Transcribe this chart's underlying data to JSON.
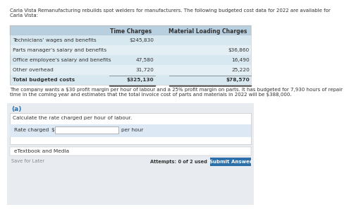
{
  "title_text": "Carla Vista Remanufacturing rebuilds spot welders for manufacturers. The following budgeted cost data for 2022 are available for\nCarla Vista:",
  "table_header_col1": "Time Charges",
  "table_header_col2": "Material Loading Charges",
  "table_rows": [
    [
      "Technicians’ wages and benefits",
      "$245,830",
      ""
    ],
    [
      "Parts manager’s salary and benefits",
      "",
      "$36,860"
    ],
    [
      "Office employee’s salary and benefits",
      "47,580",
      "16,490"
    ],
    [
      "Other overhead",
      "31,720",
      "25,220"
    ],
    [
      "Total budgeted costs",
      "$325,130",
      "$78,570"
    ]
  ],
  "paragraph": "The company wants a $30 profit margin per hour of labour and a 25% profit margin on parts. It has budgeted for 7,930 hours of repair\ntime in the coming year and estimates that the total invoice cost of parts and materials in 2022 will be $388,000.",
  "section_label": "(a)",
  "instruction": "Calculate the rate charged per hour of labour.",
  "input_label": "Rate charged",
  "input_dollar": "$",
  "input_suffix": "per hour",
  "footer_left": "eTextbook and Media",
  "footer_save": "Save for Later",
  "footer_attempts": "Attempts: 0 of 2 used",
  "footer_button": "Submit Answer",
  "bg_white": "#ffffff",
  "table_header_bg": "#b8cfe0",
  "table_row_bg1": "#d8e8f0",
  "table_row_bg2": "#e4eff5",
  "section_bg": "#e8ecf0",
  "card_bg": "#f5f5f5",
  "input_row_bg": "#dce8f4",
  "etextbook_bg": "#f8f8f8",
  "section_label_color": "#2d6fa8",
  "button_color": "#2d6fa8",
  "text_color": "#333333",
  "gray_text": "#888888",
  "input_box_bg": "#ffffff",
  "border_color": "#bbbbbb"
}
